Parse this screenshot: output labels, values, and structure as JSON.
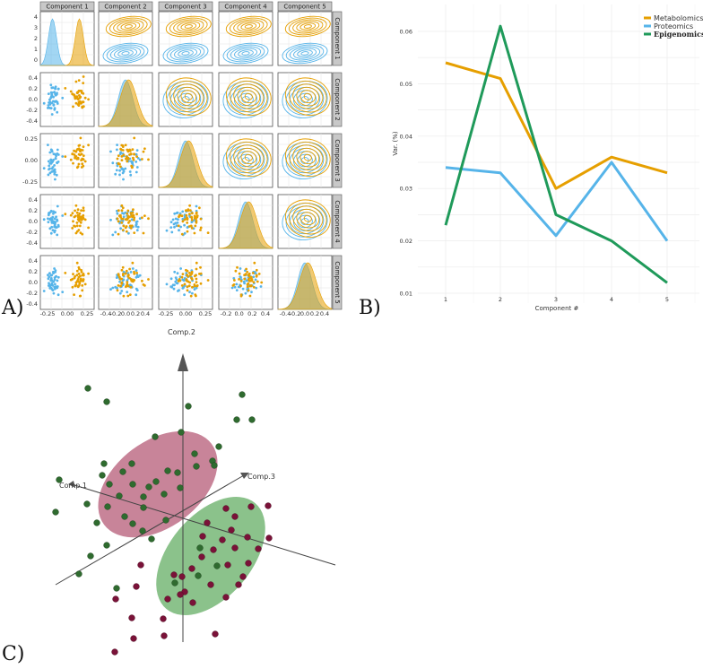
{
  "panel_labels": {
    "a": "A)",
    "b": "B)",
    "c": "C)"
  },
  "colors": {
    "metabolomics": "#e69f00",
    "proteomics": "#56b4e9",
    "epigenomics": "#1f9a5a",
    "pink_group": "#b0506e",
    "green_group": "#5aa85a",
    "strip_bg": "#c8c8c8"
  },
  "chart_data": [
    {
      "type": "scatter-matrix",
      "panel": "A",
      "components": [
        "Component 1",
        "Component 2",
        "Component 3",
        "Component 4",
        "Component 5"
      ],
      "groups": [
        "proteomics",
        "metabolomics"
      ],
      "diagonal_y_ticks": [
        "4",
        "3",
        "2",
        "1",
        "0"
      ],
      "row_y_ticks": [
        [
          "4",
          "3",
          "2",
          "1",
          "0"
        ],
        [
          "0.4",
          "0.2",
          "0.0",
          "-0.2",
          "-0.4"
        ],
        [
          "0.25",
          "0.00",
          "-0.25"
        ],
        [
          "0.4",
          "0.2",
          "0.0",
          "-0.2",
          "-0.4"
        ],
        [
          "0.4",
          "0.2",
          "0.0",
          "-0.2",
          "-0.4"
        ]
      ],
      "col_x_ticks": [
        [
          "-0.25",
          "0.00",
          "0.25"
        ],
        [
          "-0.4",
          "-0.2",
          "0.0",
          "0.2",
          "0.4"
        ],
        [
          "-0.25",
          "0.00",
          "0.25"
        ],
        [
          "-0.2",
          "0.0",
          "0.2",
          "0.4"
        ],
        [
          "-0.4",
          "-0.2",
          "0.0",
          "0.2",
          "0.4"
        ]
      ],
      "group_means": {
        "proteomics": [
          -0.22,
          0.0,
          0.0,
          0.0,
          0.0
        ],
        "metabolomics": [
          0.18,
          0.05,
          0.05,
          0.05,
          0.05
        ]
      }
    },
    {
      "type": "line",
      "panel": "B",
      "x": [
        1,
        2,
        3,
        4,
        5
      ],
      "xlabel": "Component #",
      "ylabel": "Var. (%)",
      "ylim": [
        0.01,
        0.065
      ],
      "y_ticks": [
        "0.06",
        "0.05",
        "0.04",
        "0.03",
        "0.02",
        "0.01"
      ],
      "x_ticks": [
        "1",
        "2",
        "3",
        "4",
        "5"
      ],
      "series": [
        {
          "name": "Metabolomics",
          "key": "metabolomics",
          "values": [
            0.054,
            0.051,
            0.03,
            0.036,
            0.033
          ]
        },
        {
          "name": "Proteomics",
          "key": "proteomics",
          "values": [
            0.034,
            0.033,
            0.021,
            0.035,
            0.02
          ]
        },
        {
          "name": "Epigenomics",
          "key": "epigenomics",
          "values": [
            0.023,
            0.061,
            0.025,
            0.02,
            0.012
          ]
        }
      ],
      "legend_position": "top-right"
    },
    {
      "type": "scatter-3d",
      "panel": "C",
      "axes": [
        "Comp.1",
        "Comp.2",
        "Comp.3"
      ],
      "groups": [
        "green",
        "maroon"
      ]
    }
  ]
}
